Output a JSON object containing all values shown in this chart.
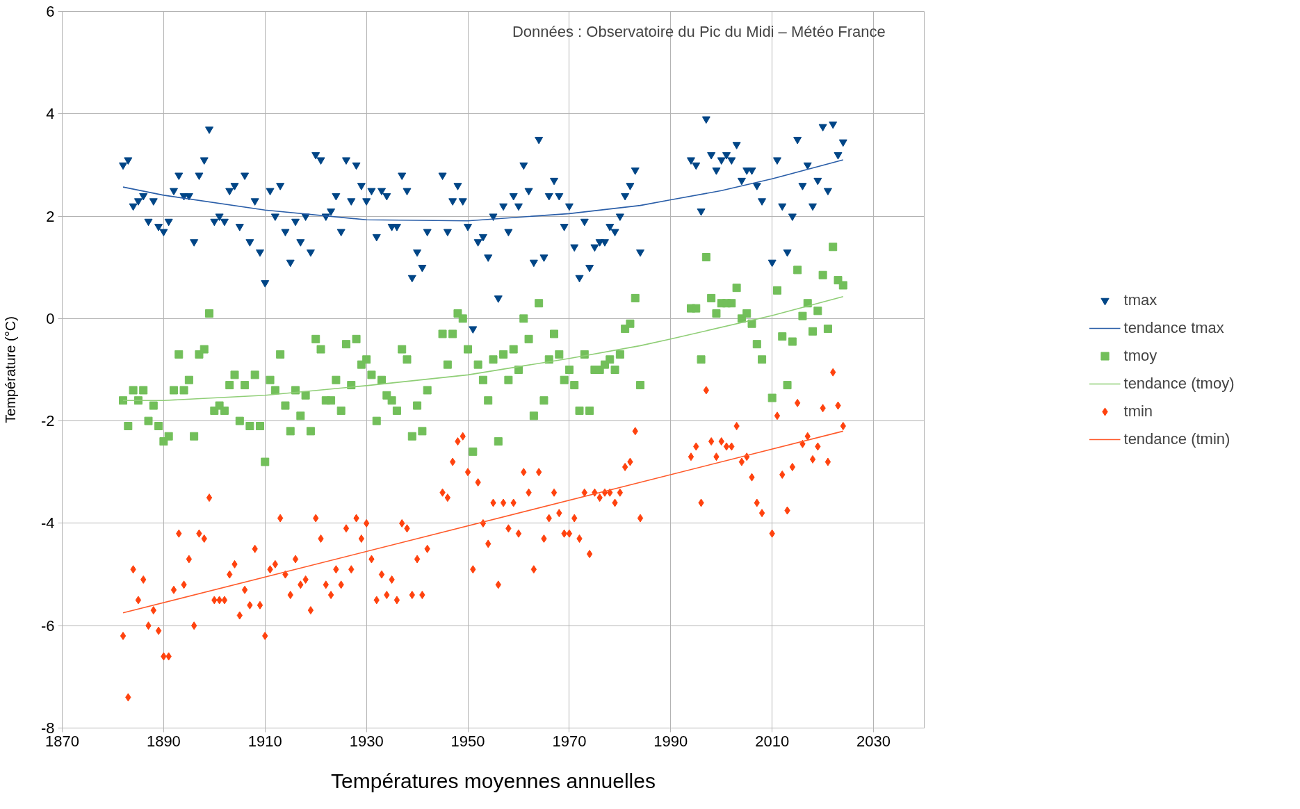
{
  "chart_data": {
    "type": "scatter",
    "xlabel": "Températures moyennes annuelles",
    "ylabel": "Température (°C)",
    "annotations": [
      "Données : Observatoire du Pic du Midi – Météo France"
    ],
    "x": [
      1882,
      1883,
      1884,
      1885,
      1886,
      1887,
      1888,
      1889,
      1890,
      1891,
      1892,
      1893,
      1894,
      1895,
      1896,
      1897,
      1898,
      1899,
      1900,
      1901,
      1902,
      1903,
      1904,
      1905,
      1906,
      1907,
      1908,
      1909,
      1910,
      1911,
      1912,
      1913,
      1914,
      1915,
      1916,
      1917,
      1918,
      1919,
      1920,
      1921,
      1922,
      1923,
      1924,
      1925,
      1926,
      1927,
      1928,
      1929,
      1930,
      1931,
      1932,
      1933,
      1934,
      1935,
      1936,
      1937,
      1938,
      1939,
      1940,
      1941,
      1942,
      1945,
      1946,
      1947,
      1948,
      1949,
      1950,
      1951,
      1952,
      1953,
      1954,
      1955,
      1956,
      1957,
      1958,
      1959,
      1960,
      1961,
      1962,
      1963,
      1964,
      1965,
      1966,
      1967,
      1968,
      1969,
      1970,
      1971,
      1972,
      1973,
      1974,
      1975,
      1976,
      1977,
      1978,
      1979,
      1980,
      1981,
      1982,
      1983,
      1984,
      1994,
      1995,
      1996,
      1997,
      1998,
      1999,
      2000,
      2001,
      2002,
      2003,
      2004,
      2005,
      2006,
      2007,
      2008,
      2010,
      2011,
      2012,
      2013,
      2014,
      2015,
      2016,
      2017,
      2018,
      2019,
      2020,
      2021,
      2022,
      2023,
      2024
    ],
    "series": [
      {
        "name": "tmax",
        "color": "#004586",
        "marker": "triangle",
        "values": [
          3.0,
          3.1,
          2.2,
          2.3,
          2.4,
          1.9,
          2.3,
          1.8,
          1.7,
          1.9,
          2.5,
          2.8,
          2.4,
          2.4,
          1.5,
          2.8,
          3.1,
          3.7,
          1.9,
          2.0,
          1.9,
          2.5,
          2.6,
          1.8,
          2.8,
          1.5,
          2.3,
          1.3,
          0.7,
          2.5,
          2.0,
          2.6,
          1.7,
          1.1,
          1.9,
          1.5,
          2.0,
          1.3,
          3.2,
          3.1,
          2.0,
          2.1,
          2.4,
          1.7,
          3.1,
          2.3,
          3.0,
          2.6,
          2.3,
          2.5,
          1.6,
          2.5,
          2.4,
          1.8,
          1.8,
          2.8,
          2.5,
          0.8,
          1.3,
          1.0,
          1.7,
          2.8,
          1.7,
          2.3,
          2.6,
          2.3,
          1.8,
          -0.2,
          1.5,
          1.6,
          1.2,
          2.0,
          0.4,
          2.2,
          1.7,
          2.4,
          2.2,
          3.0,
          2.5,
          1.1,
          3.5,
          1.2,
          2.4,
          2.7,
          2.4,
          1.8,
          2.2,
          1.4,
          0.8,
          1.9,
          1.0,
          1.4,
          1.5,
          1.5,
          1.8,
          1.7,
          2.0,
          2.4,
          2.6,
          2.9,
          1.3,
          3.1,
          3.0,
          2.1,
          3.9,
          3.2,
          2.9,
          3.1,
          3.2,
          3.1,
          3.4,
          2.7,
          2.9,
          2.9,
          2.6,
          2.3,
          1.1,
          3.1,
          2.2,
          1.3,
          2.0,
          3.5,
          2.6,
          3.0,
          2.2,
          2.7,
          3.75,
          2.5,
          3.8,
          3.2,
          3.45
        ]
      },
      {
        "name": "tendance tmax",
        "type": "line",
        "color": "#2a5ea8",
        "x": [
          1882,
          1890,
          1910,
          1930,
          1950,
          1970,
          1984,
          1990,
          2000,
          2010,
          2024
        ],
        "values": [
          2.57,
          2.41,
          2.12,
          1.93,
          1.91,
          2.05,
          2.21,
          2.32,
          2.5,
          2.73,
          3.1
        ]
      },
      {
        "name": "tmoy",
        "color": "#72bf5a",
        "marker": "square",
        "values": [
          -1.6,
          -2.1,
          -1.4,
          -1.6,
          -1.4,
          -2.0,
          -1.7,
          -2.1,
          -2.4,
          -2.3,
          -1.4,
          -0.7,
          -1.4,
          -1.2,
          -2.3,
          -0.7,
          -0.6,
          0.1,
          -1.8,
          -1.7,
          -1.8,
          -1.3,
          -1.1,
          -2.0,
          -1.3,
          -2.1,
          -1.1,
          -2.1,
          -2.8,
          -1.2,
          -1.4,
          -0.7,
          -1.7,
          -2.2,
          -1.4,
          -1.9,
          -1.5,
          -2.2,
          -0.4,
          -0.6,
          -1.6,
          -1.6,
          -1.2,
          -1.8,
          -0.5,
          -1.3,
          -0.4,
          -0.9,
          -0.8,
          -1.1,
          -2.0,
          -1.2,
          -1.5,
          -1.6,
          -1.8,
          -0.6,
          -0.8,
          -2.3,
          -1.7,
          -2.2,
          -1.4,
          -0.3,
          -0.9,
          -0.3,
          0.1,
          0.0,
          -0.6,
          -2.6,
          -0.9,
          -1.2,
          -1.6,
          -0.8,
          -2.4,
          -0.7,
          -1.2,
          -0.6,
          -1.0,
          0.0,
          -0.4,
          -1.9,
          0.3,
          -1.6,
          -0.8,
          -0.3,
          -0.7,
          -1.2,
          -1.0,
          -1.3,
          -1.8,
          -0.7,
          -1.8,
          -1.0,
          -1.0,
          -0.9,
          -0.8,
          -1.0,
          -0.7,
          -0.2,
          -0.1,
          0.4,
          -1.3,
          0.2,
          0.2,
          -0.8,
          1.2,
          0.4,
          0.1,
          0.3,
          0.3,
          0.3,
          0.6,
          0.0,
          0.1,
          -0.1,
          -0.5,
          -0.8,
          -1.55,
          0.55,
          -0.35,
          -1.3,
          -0.45,
          0.95,
          0.05,
          0.3,
          -0.25,
          0.15,
          0.85,
          -0.2,
          1.4,
          0.75,
          0.65
        ]
      },
      {
        "name": "tendance (tmoy)",
        "type": "line",
        "color": "#8fce76",
        "x": [
          1882,
          1890,
          1910,
          1930,
          1950,
          1970,
          1984,
          1990,
          2010,
          2024
        ],
        "values": [
          -1.6,
          -1.6,
          -1.5,
          -1.31,
          -1.1,
          -0.78,
          -0.53,
          -0.4,
          0.06,
          0.43
        ]
      },
      {
        "name": "tmin",
        "color": "#ff420e",
        "marker": "diamond",
        "values": [
          -6.2,
          -7.4,
          -4.9,
          -5.5,
          -5.1,
          -6.0,
          -5.7,
          -6.1,
          -6.6,
          -6.6,
          -5.3,
          -4.2,
          -5.2,
          -4.7,
          -6.0,
          -4.2,
          -4.3,
          -3.5,
          -5.5,
          -5.5,
          -5.5,
          -5.0,
          -4.8,
          -5.8,
          -5.3,
          -5.6,
          -4.5,
          -5.6,
          -6.2,
          -4.9,
          -4.8,
          -3.9,
          -5.0,
          -5.4,
          -4.7,
          -5.2,
          -5.1,
          -5.7,
          -3.9,
          -4.3,
          -5.2,
          -5.4,
          -4.9,
          -5.2,
          -4.1,
          -4.9,
          -3.9,
          -4.3,
          -4.0,
          -4.7,
          -5.5,
          -5.0,
          -5.4,
          -5.1,
          -5.5,
          -4.0,
          -4.1,
          -5.4,
          -4.7,
          -5.4,
          -4.5,
          -3.4,
          -3.5,
          -2.8,
          -2.4,
          -2.3,
          -3.0,
          -4.9,
          -3.2,
          -4.0,
          -4.4,
          -3.6,
          -5.2,
          -3.6,
          -4.1,
          -3.6,
          -4.2,
          -3.0,
          -3.4,
          -4.9,
          -3.0,
          -4.3,
          -3.9,
          -3.4,
          -3.8,
          -4.2,
          -4.2,
          -3.9,
          -4.3,
          -3.4,
          -4.6,
          -3.4,
          -3.5,
          -3.4,
          -3.4,
          -3.6,
          -3.4,
          -2.9,
          -2.8,
          -2.2,
          -3.9,
          -2.7,
          -2.5,
          -3.6,
          -1.4,
          -2.4,
          -2.7,
          -2.4,
          -2.5,
          -2.5,
          -2.1,
          -2.8,
          -2.7,
          -3.1,
          -3.6,
          -3.8,
          -4.2,
          -1.9,
          -3.05,
          -3.75,
          -2.9,
          -1.65,
          -2.45,
          -2.3,
          -2.75,
          -2.5,
          -1.75,
          -2.8,
          -1.05,
          -1.7,
          -2.1
        ]
      },
      {
        "name": "tendance (tmin)",
        "type": "line",
        "color": "#ff5a2a",
        "x": [
          1882,
          2024
        ],
        "values": [
          -5.75,
          -2.2
        ]
      }
    ],
    "xlim": [
      1870,
      2040
    ],
    "xticks": [
      1870,
      1890,
      1910,
      1930,
      1950,
      1970,
      1990,
      2010,
      2030
    ],
    "ylim": [
      -8,
      6
    ],
    "yticks": [
      -8,
      -6,
      -4,
      -2,
      0,
      2,
      4,
      6
    ],
    "grid": true,
    "legend": "right",
    "line_style": "solid"
  }
}
